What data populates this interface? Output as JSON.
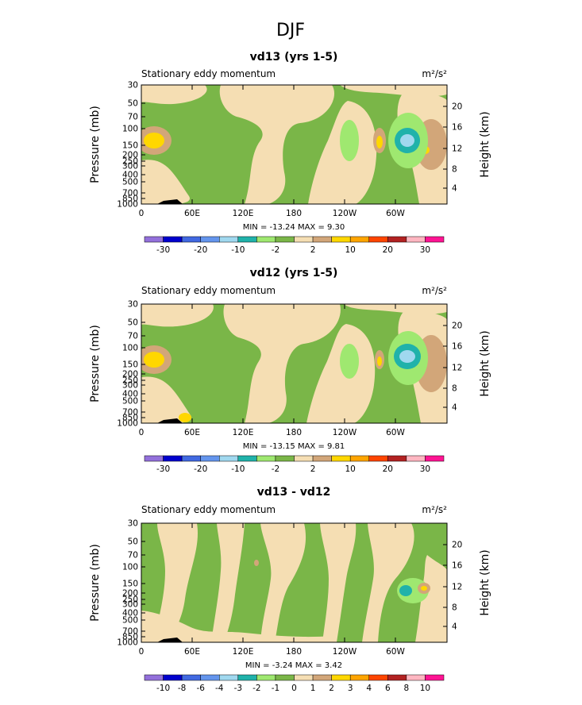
{
  "page_title": "DJF",
  "chart_data": [
    {
      "type": "heatmap",
      "title": "vd13 (yrs 1-5)",
      "subtitle_left": "Stationary eddy momentum",
      "units": "m²/s²",
      "ylabel": "Pressure (mb)",
      "ylabel_right": "Height (km)",
      "xticks": [
        "0",
        "60E",
        "120E",
        "180",
        "120W",
        "60W"
      ],
      "yticks": [
        "30",
        "50",
        "70",
        "100",
        "150",
        "200",
        "250",
        "300",
        "400",
        "500",
        "700",
        "850",
        "1000"
      ],
      "yticks_right": [
        "20",
        "16",
        "12",
        "8",
        "4"
      ],
      "min_max_text": "MIN = -13.24   MAX =   9.30",
      "colorbar_labels": [
        "-30",
        "-20",
        "-10",
        "-2",
        "2",
        "10",
        "20",
        "30"
      ],
      "colorbar_colors": [
        "#9370db",
        "#0000cd",
        "#4169e1",
        "#6495ed",
        "#a0d8ef",
        "#20b2aa",
        "#9fe870",
        "#7ab648",
        "#f5deb3",
        "#d2a679",
        "#ffd700",
        "#ffa500",
        "#ff4500",
        "#b22222",
        "#ffb6c1",
        "#ff1493"
      ]
    },
    {
      "type": "heatmap",
      "title": "vd12 (yrs 1-5)",
      "subtitle_left": "Stationary eddy momentum",
      "units": "m²/s²",
      "ylabel": "Pressure (mb)",
      "ylabel_right": "Height (km)",
      "xticks": [
        "0",
        "60E",
        "120E",
        "180",
        "120W",
        "60W"
      ],
      "yticks": [
        "30",
        "50",
        "70",
        "100",
        "150",
        "200",
        "250",
        "300",
        "400",
        "500",
        "700",
        "850",
        "1000"
      ],
      "yticks_right": [
        "20",
        "16",
        "12",
        "8",
        "4"
      ],
      "min_max_text": "MIN = -13.15   MAX =   9.81",
      "colorbar_labels": [
        "-30",
        "-20",
        "-10",
        "-2",
        "2",
        "10",
        "20",
        "30"
      ],
      "colorbar_colors": [
        "#9370db",
        "#0000cd",
        "#4169e1",
        "#6495ed",
        "#a0d8ef",
        "#20b2aa",
        "#9fe870",
        "#7ab648",
        "#f5deb3",
        "#d2a679",
        "#ffd700",
        "#ffa500",
        "#ff4500",
        "#b22222",
        "#ffb6c1",
        "#ff1493"
      ]
    },
    {
      "type": "heatmap",
      "title": "vd13 - vd12",
      "subtitle_left": "Stationary eddy momentum",
      "units": "m²/s²",
      "ylabel": "Pressure (mb)",
      "ylabel_right": "Height (km)",
      "xticks": [
        "0",
        "60E",
        "120E",
        "180",
        "120W",
        "60W"
      ],
      "yticks": [
        "30",
        "50",
        "70",
        "100",
        "150",
        "200",
        "250",
        "300",
        "400",
        "500",
        "700",
        "850",
        "1000"
      ],
      "yticks_right": [
        "20",
        "16",
        "12",
        "8",
        "4"
      ],
      "min_max_text": "MIN =  -3.24   MAX =   3.42",
      "colorbar_labels": [
        "-10",
        "-8",
        "-6",
        "-4",
        "-3",
        "-2",
        "-1",
        "0",
        "1",
        "2",
        "3",
        "4",
        "6",
        "8",
        "10"
      ],
      "colorbar_colors": [
        "#9370db",
        "#0000cd",
        "#4169e1",
        "#6495ed",
        "#a0d8ef",
        "#20b2aa",
        "#9fe870",
        "#7ab648",
        "#f5deb3",
        "#d2a679",
        "#ffd700",
        "#ffa500",
        "#ff4500",
        "#b22222",
        "#ffb6c1",
        "#ff1493"
      ]
    }
  ]
}
